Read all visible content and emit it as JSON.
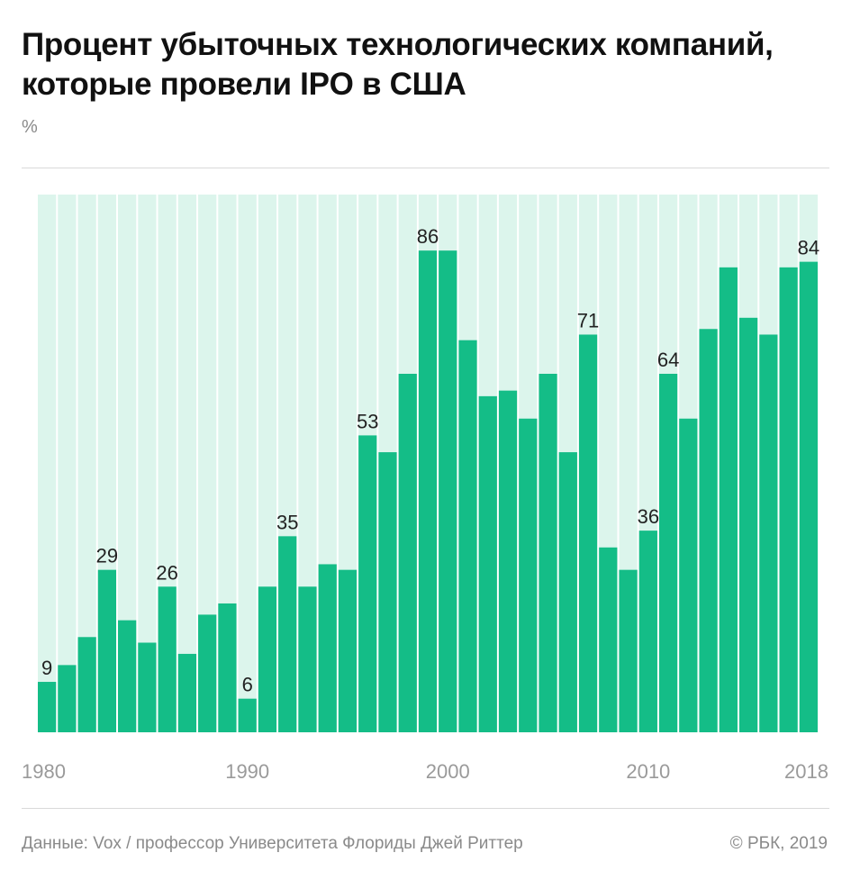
{
  "title": "Процент убыточных технологических компаний, которые провели IPO в США",
  "unit": "%",
  "source": "Данные: Vox / профессор Университета Флориды Джей Риттер",
  "copyright": "© РБК, 2019",
  "colors": {
    "bar": "#14bd87",
    "background_column": "#dcf5ec",
    "axis_text": "#9a9a9a",
    "label_text": "#222222"
  },
  "chart_data": {
    "type": "bar",
    "title": "Процент убыточных технологических компаний, которые провели IPO в США",
    "ylabel": "%",
    "ylim": [
      0,
      96
    ],
    "grid": false,
    "x_tick_labels": [
      "1980",
      "1990",
      "2000",
      "2010",
      "2018"
    ],
    "categories": [
      1980,
      1981,
      1982,
      1983,
      1984,
      1985,
      1986,
      1987,
      1988,
      1989,
      1990,
      1991,
      1992,
      1993,
      1994,
      1995,
      1996,
      1997,
      1998,
      1999,
      2000,
      2001,
      2002,
      2003,
      2004,
      2005,
      2006,
      2007,
      2008,
      2009,
      2010,
      2011,
      2012,
      2013,
      2014,
      2015,
      2016,
      2017,
      2018
    ],
    "values": [
      9,
      12,
      17,
      29,
      20,
      16,
      26,
      14,
      21,
      23,
      6,
      26,
      35,
      26,
      30,
      29,
      53,
      50,
      64,
      86,
      86,
      70,
      60,
      61,
      56,
      64,
      50,
      71,
      33,
      29,
      36,
      64,
      56,
      72,
      83,
      74,
      71,
      83,
      84
    ],
    "data_labels": [
      {
        "year": 1980,
        "text": "9"
      },
      {
        "year": 1990,
        "text": "6"
      },
      {
        "year": 1983,
        "text": "29"
      },
      {
        "year": 1986,
        "text": "26"
      },
      {
        "year": 1992,
        "text": "35"
      },
      {
        "year": 1996,
        "text": "53"
      },
      {
        "year": 1999,
        "text": "86"
      },
      {
        "year": 2007,
        "text": "71"
      },
      {
        "year": 2010,
        "text": "36"
      },
      {
        "year": 2011,
        "text": "64"
      },
      {
        "year": 2018,
        "text": "84"
      }
    ]
  }
}
